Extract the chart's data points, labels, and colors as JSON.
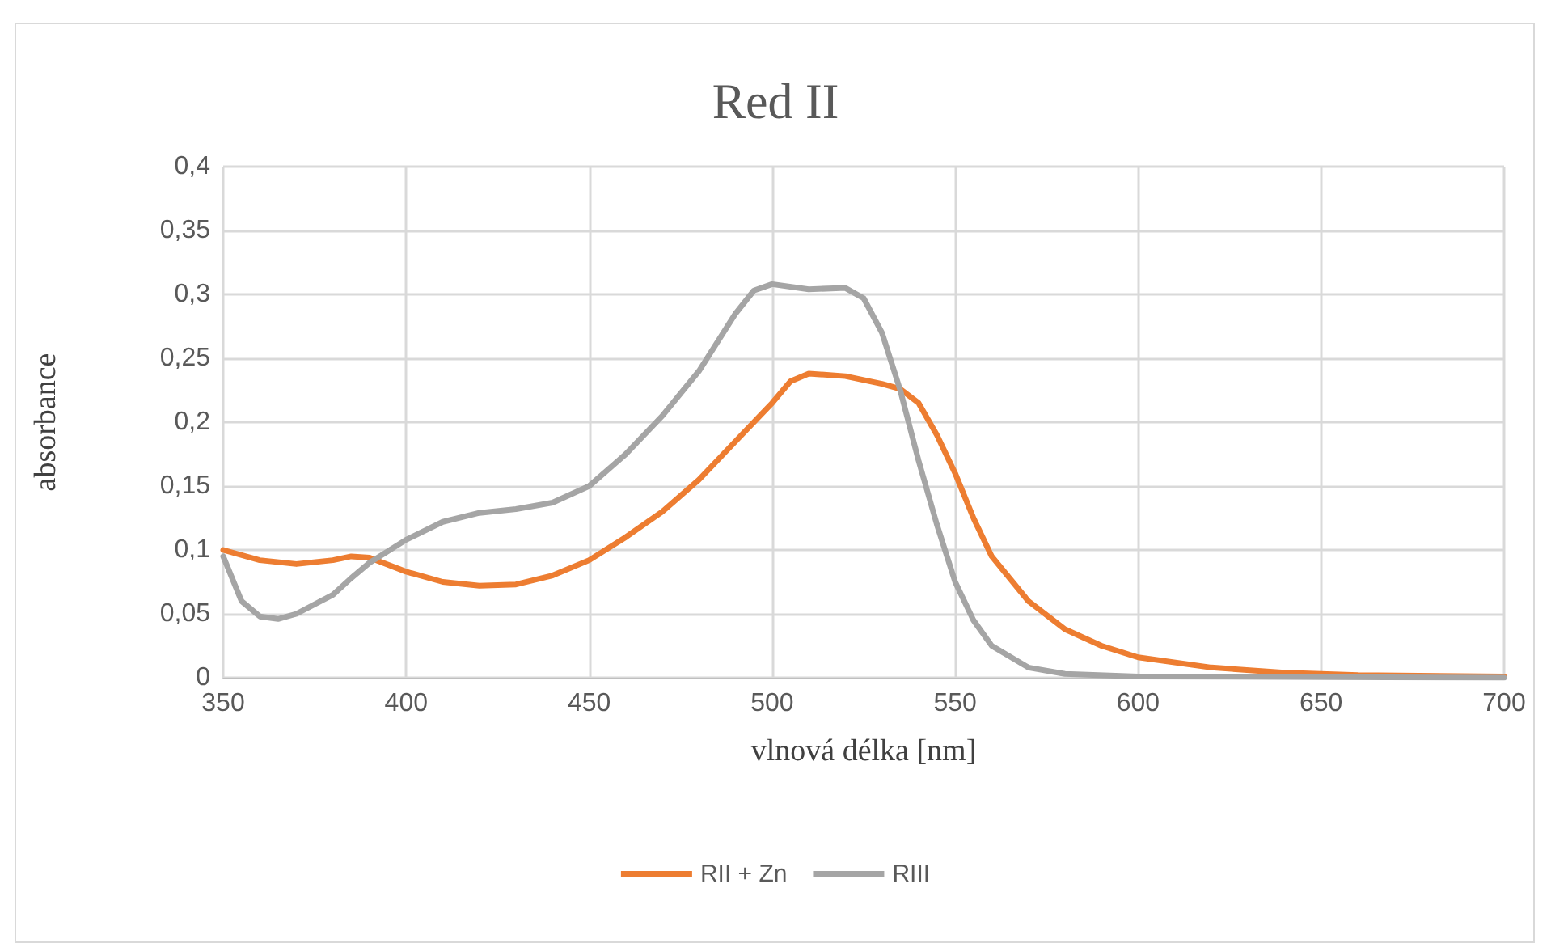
{
  "chart_data": {
    "type": "line",
    "title": "Red II",
    "xlabel": "vlnová délka [nm]",
    "ylabel": "absorbance",
    "xlim": [
      350,
      700
    ],
    "xticks": [
      350,
      400,
      450,
      500,
      550,
      600,
      650,
      700
    ],
    "ylim": [
      0,
      0.4
    ],
    "yticks": [
      0,
      {
        "value": 0.05,
        "label": "0,05"
      },
      {
        "value": 0.1,
        "label": "0,1"
      },
      {
        "value": 0.15,
        "label": "0,15"
      },
      {
        "value": 0.2,
        "label": "0,2"
      },
      {
        "value": 0.25,
        "label": "0,25"
      },
      {
        "value": 0.3,
        "label": "0,3"
      },
      {
        "value": 0.35,
        "label": "0,35"
      },
      {
        "value": 0.4,
        "label": "0,4"
      }
    ],
    "grid": true,
    "legend": "bottom",
    "marker": "none",
    "line_style": "solid",
    "series": [
      {
        "name": "RII + Zn",
        "color": "#ed7d31",
        "x": [
          350,
          360,
          370,
          380,
          385,
          390,
          400,
          410,
          420,
          430,
          440,
          450,
          460,
          470,
          480,
          490,
          500,
          505,
          510,
          520,
          530,
          535,
          540,
          545,
          550,
          555,
          560,
          570,
          580,
          590,
          600,
          620,
          640,
          660,
          700
        ],
        "values": [
          0.1,
          0.092,
          0.089,
          0.092,
          0.095,
          0.094,
          0.083,
          0.075,
          0.072,
          0.073,
          0.08,
          0.092,
          0.11,
          0.13,
          0.155,
          0.185,
          0.215,
          0.232,
          0.238,
          0.236,
          0.23,
          0.226,
          0.215,
          0.19,
          0.16,
          0.125,
          0.095,
          0.06,
          0.038,
          0.025,
          0.016,
          0.008,
          0.004,
          0.002,
          0.001
        ]
      },
      {
        "name": "RIII",
        "color": "#a5a5a5",
        "x": [
          350,
          355,
          360,
          365,
          370,
          380,
          385,
          390,
          400,
          410,
          420,
          430,
          440,
          450,
          460,
          470,
          480,
          490,
          495,
          500,
          510,
          520,
          525,
          530,
          535,
          540,
          545,
          550,
          555,
          560,
          570,
          580,
          600,
          700
        ],
        "values": [
          0.095,
          0.06,
          0.048,
          0.046,
          0.05,
          0.065,
          0.078,
          0.09,
          0.108,
          0.122,
          0.129,
          0.132,
          0.137,
          0.15,
          0.175,
          0.205,
          0.24,
          0.285,
          0.303,
          0.308,
          0.304,
          0.305,
          0.297,
          0.27,
          0.225,
          0.17,
          0.12,
          0.075,
          0.045,
          0.025,
          0.008,
          0.003,
          0.001,
          0
        ]
      }
    ]
  }
}
